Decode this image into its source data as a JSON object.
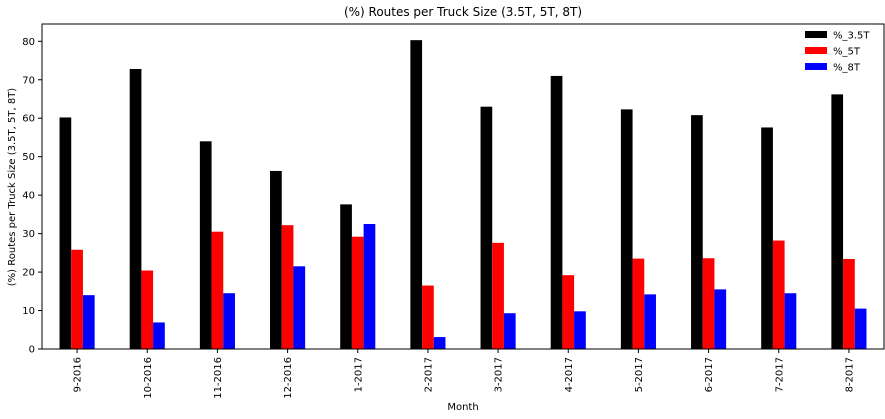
{
  "chart_data": {
    "type": "bar",
    "title": "(%) Routes per Truck Size (3.5T, 5T, 8T)",
    "xlabel": "Month",
    "ylabel": "(%) Routes per Truck Size (3.5T, 5T, 8T)",
    "categories": [
      "9-2016",
      "10-2016",
      "11-2016",
      "12-2016",
      "1-2017",
      "2-2017",
      "3-2017",
      "4-2017",
      "5-2017",
      "6-2017",
      "7-2017",
      "8-2017"
    ],
    "series": [
      {
        "name": "%_3.5T",
        "color": "#000000",
        "values": [
          60.2,
          72.8,
          54.0,
          46.3,
          37.6,
          80.3,
          63.0,
          71.0,
          62.3,
          60.8,
          57.6,
          66.2
        ]
      },
      {
        "name": "%_5T",
        "color": "#ff0000",
        "values": [
          25.8,
          20.4,
          30.5,
          32.2,
          29.2,
          16.5,
          27.6,
          19.2,
          23.5,
          23.6,
          28.2,
          23.4
        ]
      },
      {
        "name": "%_8T",
        "color": "#0000ff",
        "values": [
          14.0,
          6.9,
          14.5,
          21.5,
          32.5,
          3.1,
          9.3,
          9.8,
          14.2,
          15.5,
          14.5,
          10.5
        ]
      }
    ],
    "ylim": [
      0,
      84.5
    ],
    "yticks": [
      0,
      10,
      20,
      30,
      40,
      50,
      60,
      70,
      80
    ],
    "grid": false,
    "legend_position": "top-right"
  }
}
